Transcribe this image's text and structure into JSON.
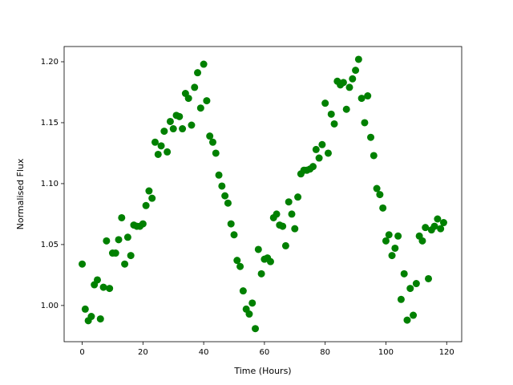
{
  "chart_data": {
    "type": "scatter",
    "xlabel": "Time (Hours)",
    "ylabel": "Normalised Flux",
    "color": "#008000",
    "x": [
      0,
      1,
      2,
      3,
      4,
      5,
      6,
      7,
      8,
      9,
      10,
      11,
      12,
      13,
      14,
      15,
      16,
      17,
      18,
      19,
      20,
      21,
      22,
      23,
      24,
      25,
      26,
      27,
      28,
      29,
      30,
      31,
      32,
      33,
      34,
      35,
      36,
      37,
      38,
      39,
      40,
      41,
      42,
      43,
      44,
      45,
      46,
      47,
      48,
      49,
      50,
      51,
      52,
      53,
      54,
      55,
      56,
      57,
      58,
      59,
      60,
      61,
      62,
      63,
      64,
      65,
      66,
      67,
      68,
      69,
      70,
      71,
      72,
      73,
      74,
      75,
      76,
      77,
      78,
      79,
      80,
      81,
      82,
      83,
      84,
      85,
      86,
      87,
      88,
      89,
      90,
      91,
      92,
      93,
      94,
      95,
      96,
      97,
      98,
      99,
      100,
      101,
      102,
      103,
      104,
      105,
      106,
      107,
      108,
      109,
      110,
      111,
      112,
      113,
      114,
      115,
      116,
      117,
      118,
      119
    ],
    "values": [
      1.034,
      0.997,
      0.9875,
      0.991,
      1.017,
      1.021,
      0.989,
      1.015,
      1.053,
      1.014,
      1.043,
      1.043,
      1.054,
      1.072,
      1.034,
      1.056,
      1.041,
      1.066,
      1.065,
      1.065,
      1.067,
      1.082,
      1.094,
      1.088,
      1.134,
      1.124,
      1.131,
      1.143,
      1.126,
      1.151,
      1.145,
      1.156,
      1.155,
      1.145,
      1.174,
      1.17,
      1.148,
      1.179,
      1.191,
      1.162,
      1.198,
      1.168,
      1.139,
      1.134,
      1.125,
      1.107,
      1.098,
      1.09,
      1.084,
      1.067,
      1.058,
      1.037,
      1.032,
      1.012,
      0.997,
      0.993,
      1.002,
      0.981,
      1.046,
      1.026,
      1.038,
      1.039,
      1.036,
      1.072,
      1.075,
      1.066,
      1.065,
      1.049,
      1.085,
      1.075,
      1.063,
      1.089,
      1.108,
      1.111,
      1.111,
      1.112,
      1.114,
      1.128,
      1.121,
      1.132,
      1.166,
      1.125,
      1.157,
      1.149,
      1.184,
      1.181,
      1.183,
      1.161,
      1.179,
      1.186,
      1.193,
      1.202,
      1.17,
      1.15,
      1.172,
      1.138,
      1.123,
      1.096,
      1.091,
      1.08,
      1.053,
      1.058,
      1.041,
      1.047,
      1.057,
      1.005,
      1.026,
      0.988,
      1.014,
      0.992,
      1.018,
      1.057,
      1.053,
      1.064,
      1.022,
      1.062,
      1.065,
      1.071,
      1.063,
      1.068
    ],
    "xlim": [
      -5.95,
      124.95
    ],
    "ylim": [
      0.9703,
      1.2125
    ],
    "xticks": [
      0,
      20,
      40,
      60,
      80,
      100,
      120
    ],
    "yticks": [
      {
        "value": 1.0,
        "label": "1.00"
      },
      {
        "value": 1.05,
        "label": "1.05"
      },
      {
        "value": 1.1,
        "label": "1.10"
      },
      {
        "value": 1.15,
        "label": "1.15"
      },
      {
        "value": 1.2,
        "label": "1.20"
      }
    ]
  }
}
